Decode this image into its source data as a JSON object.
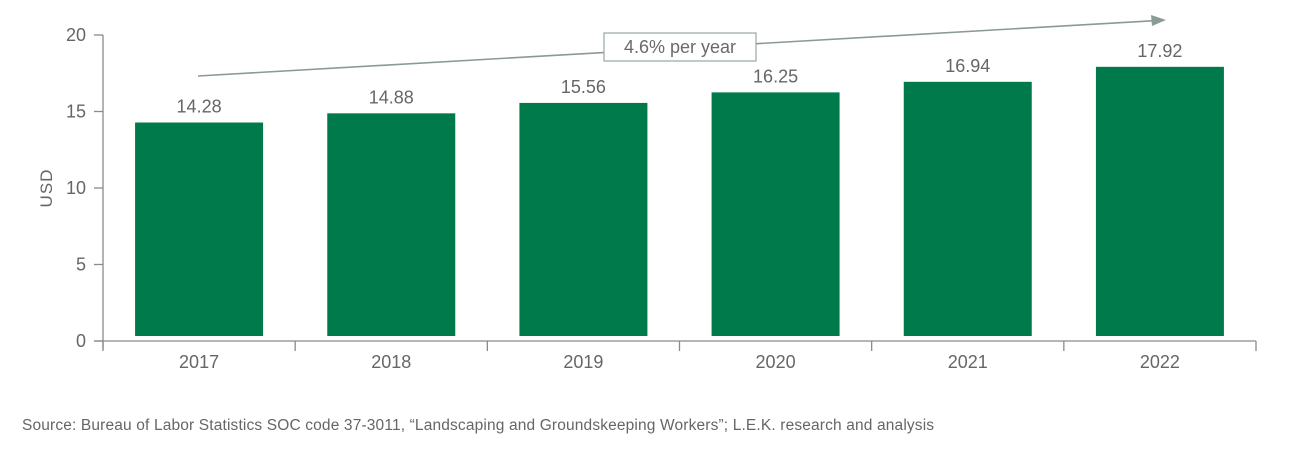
{
  "chart_data": {
    "type": "bar",
    "title": "",
    "categories": [
      "2017",
      "2018",
      "2019",
      "2020",
      "2021",
      "2022"
    ],
    "values": [
      14.28,
      14.88,
      15.56,
      16.25,
      16.94,
      17.92
    ],
    "value_labels": [
      "14.28",
      "14.88",
      "15.56",
      "16.25",
      "16.94",
      "17.92"
    ],
    "xlabel": "",
    "ylabel": "USD",
    "ylim": [
      0,
      20
    ],
    "yticks": [
      0,
      5,
      10,
      15,
      20
    ],
    "grid": false,
    "legend": null,
    "bar_color": "#007A4B",
    "annotations": [
      {
        "type": "trend-arrow",
        "text": "4.6% per year",
        "from": "2017",
        "to": "2022"
      }
    ]
  },
  "annotation": {
    "cagr_label": "4.6% per year"
  },
  "source": "Source: Bureau of Labor Statistics SOC code 37-3011, “Landscaping and Groundskeeping Workers”; L.E.K. research and analysis",
  "colors": {
    "bar": "#007A4B",
    "axis": "#8a8a8a",
    "text": "#666666",
    "arrow": "#8a9a96"
  }
}
